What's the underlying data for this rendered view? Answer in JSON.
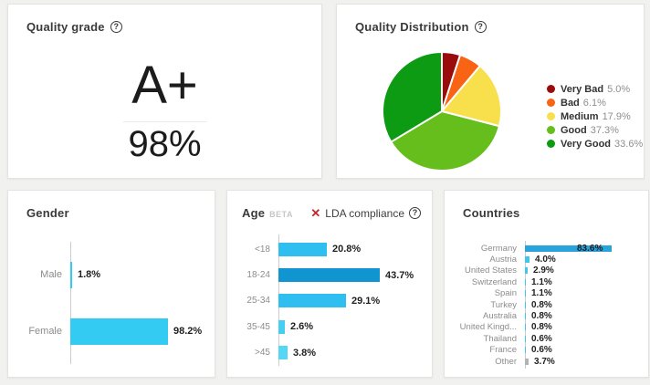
{
  "icons": {
    "help": "?",
    "x_mark": "✕"
  },
  "cards": {
    "quality_grade": {
      "title": "Quality grade",
      "grade": "A+",
      "score": "98%"
    },
    "quality_distribution": {
      "title": "Quality Distribution"
    },
    "gender": {
      "title": "Gender"
    },
    "age": {
      "title": "Age",
      "badge": "BETA",
      "lda": {
        "label": "LDA compliance"
      }
    },
    "countries": {
      "title": "Countries"
    }
  },
  "chart_data": [
    {
      "id": "quality_distribution",
      "type": "pie",
      "title": "Quality Distribution",
      "labels": [
        "Very Bad",
        "Bad",
        "Medium",
        "Good",
        "Very Good"
      ],
      "values": [
        5.0,
        6.1,
        17.9,
        37.3,
        33.6
      ],
      "value_labels": [
        "5.0%",
        "6.1%",
        "17.9%",
        "37.3%",
        "33.6%"
      ],
      "colors": [
        "#9a0b0b",
        "#f86314",
        "#f8e04c",
        "#65be1b",
        "#0d9b13"
      ],
      "legend_position": "right",
      "start_angle_deg": -90,
      "direction": "clockwise"
    },
    {
      "id": "gender",
      "type": "bar",
      "orientation": "horizontal",
      "title": "Gender",
      "categories": [
        "Male",
        "Female"
      ],
      "values": [
        1.8,
        98.2
      ],
      "value_labels": [
        "1.8%",
        "98.2%"
      ],
      "bar_colors": [
        "#33cbf2",
        "#33cbf2"
      ],
      "xlim": [
        0,
        100
      ]
    },
    {
      "id": "age",
      "type": "bar",
      "orientation": "horizontal",
      "title": "Age",
      "categories": [
        "<18",
        "18-24",
        "25-34",
        "35-45",
        ">45"
      ],
      "values": [
        20.8,
        43.7,
        29.1,
        2.6,
        3.8
      ],
      "value_labels": [
        "20.8%",
        "43.7%",
        "29.1%",
        "2.6%",
        "3.8%"
      ],
      "bar_colors": [
        "#2ebeef",
        "#1095d0",
        "#2ebeef",
        "#45cdf2",
        "#55d6f5"
      ],
      "xlim": [
        0,
        50
      ]
    },
    {
      "id": "countries",
      "type": "bar",
      "orientation": "horizontal",
      "title": "Countries",
      "categories": [
        "Germany",
        "Austria",
        "United States",
        "Switzerland",
        "Spain",
        "Turkey",
        "Australia",
        "United Kingd...",
        "Thailand",
        "France",
        "Other"
      ],
      "values": [
        83.6,
        4.0,
        2.9,
        1.1,
        1.1,
        0.8,
        0.8,
        0.8,
        0.6,
        0.6,
        3.7
      ],
      "value_labels": [
        "83.6%",
        "4.0%",
        "2.9%",
        "1.1%",
        "1.1%",
        "0.8%",
        "0.8%",
        "0.8%",
        "0.6%",
        "0.6%",
        "3.7%"
      ],
      "bar_colors": [
        "#29a3dc",
        "#3ec6ee",
        "#3ec6ee",
        "#3ec6ee",
        "#3ec6ee",
        "#3ec6ee",
        "#3ec6ee",
        "#3ec6ee",
        "#3ec6ee",
        "#3ec6ee",
        "#b3b3b3"
      ],
      "xlim": [
        0,
        100
      ]
    }
  ]
}
